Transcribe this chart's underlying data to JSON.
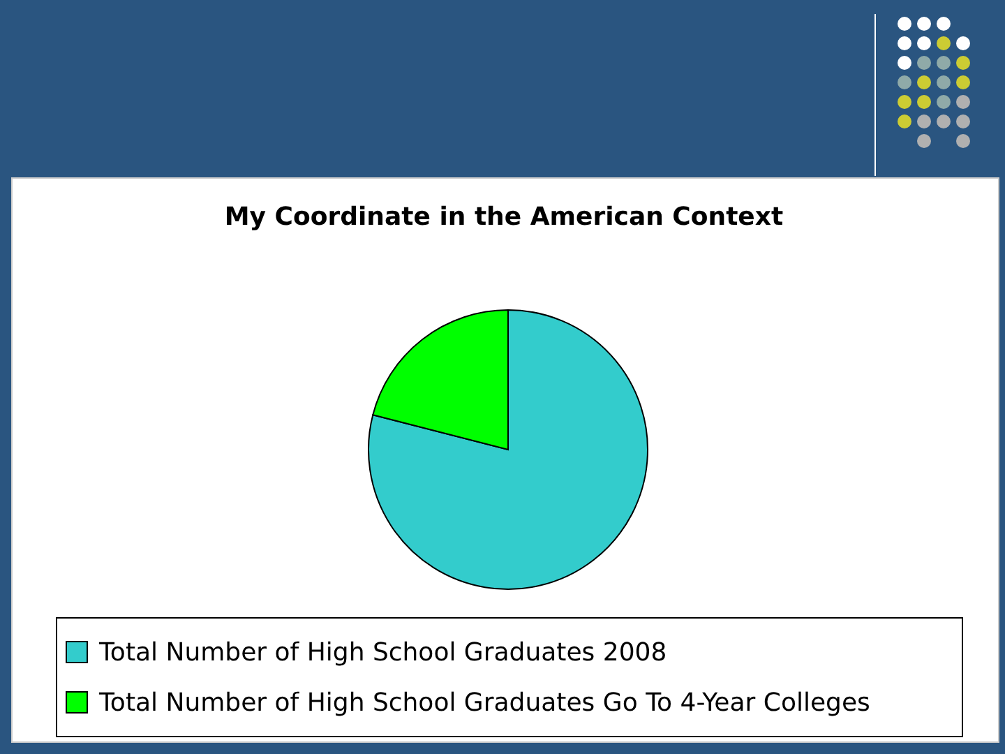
{
  "chart_data": {
    "type": "pie",
    "title": "My Coordinate in the American Context",
    "categories": [
      "Total Number of High School Graduates 2008",
      "Total Number of High School Graduates Go To 4-Year Colleges"
    ],
    "values": [
      79,
      21
    ],
    "colors": [
      "#33cccc",
      "#00ff00"
    ],
    "legend": "bottom"
  }
}
